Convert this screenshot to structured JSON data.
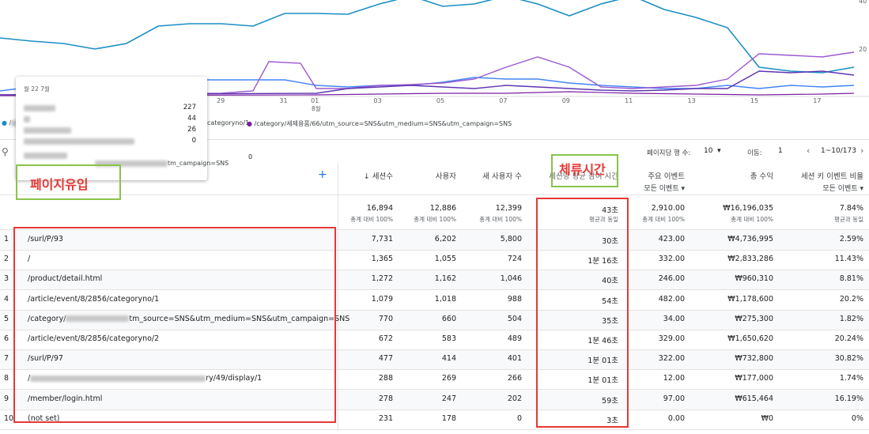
{
  "chart": {
    "axis_right": [
      "40",
      "20"
    ],
    "x_labels": [
      "29",
      "31",
      "01",
      "03",
      "05",
      "07",
      "09",
      "11",
      "13",
      "15",
      "17"
    ],
    "month_label": "8월",
    "tooltip": {
      "title": "월 22 7월",
      "values": [
        "227",
        "44",
        "26",
        "0"
      ]
    },
    "zero_label": "0",
    "legend": [
      "categoryno/1",
      "/category/세제용품/66/utm_source=SNS&utm_medium=SNS&utm_campaign=SNS"
    ],
    "legend_fragment": "tm_campaign=SNS"
  },
  "toolbar": {
    "rows_label": "페이지당 행 수:",
    "rows_value": "10",
    "goto_label": "이동:",
    "goto_value": "1",
    "range": "1~10/173"
  },
  "table": {
    "headers": [
      {
        "label": "↓ 세션수"
      },
      {
        "label": "사용자"
      },
      {
        "label": "새 사용자 수"
      },
      {
        "label": "세션당 평균 참여 시간"
      },
      {
        "label": "주요 이벤트",
        "sub": "모든 이벤트"
      },
      {
        "label": "총 수익"
      },
      {
        "label": "세션 키 이벤트 비율",
        "sub": "모든 이벤트"
      }
    ],
    "totals": [
      {
        "value": "16,894",
        "note": "총계 대비 100%"
      },
      {
        "value": "12,886",
        "note": "총계 대비 100%"
      },
      {
        "value": "12,399",
        "note": "총계 대비 100%"
      },
      {
        "value": "43초",
        "note": "평균과 동일"
      },
      {
        "value": "2,910.00",
        "note": "총계 대비 100%"
      },
      {
        "value": "₩16,196,035",
        "note": "총계 대비 100%"
      },
      {
        "value": "7.84%",
        "note": "평균과 동일"
      }
    ],
    "rows": [
      {
        "index": "1",
        "page": [
          "/surl/P/93"
        ],
        "cells": [
          "7,731",
          "6,202",
          "5,800",
          "30초",
          "423.00",
          "₩4,736,995",
          "2.59%"
        ]
      },
      {
        "index": "2",
        "page": [
          "/"
        ],
        "cells": [
          "1,365",
          "1,055",
          "724",
          "1분 16초",
          "332.00",
          "₩2,833,286",
          "11.43%"
        ]
      },
      {
        "index": "3",
        "page": [
          "/product/detail.html"
        ],
        "cells": [
          "1,272",
          "1,162",
          "1,046",
          "40초",
          "246.00",
          "₩960,310",
          "8.81%"
        ]
      },
      {
        "index": "4",
        "page": [
          "/article/event/8/2856/categoryno/1"
        ],
        "cells": [
          "1,079",
          "1,018",
          "988",
          "54초",
          "482.00",
          "₩1,178,600",
          "20.2%"
        ]
      },
      {
        "index": "5",
        "page": [
          "/category/",
          "tm_source=SNS&utm_medium=SNS&utm_campaign=SNS"
        ],
        "cells": [
          "770",
          "660",
          "504",
          "35초",
          "34.00",
          "₩275,300",
          "1.82%"
        ]
      },
      {
        "index": "6",
        "page": [
          "/article/event/8/2856/categoryno/2"
        ],
        "cells": [
          "672",
          "583",
          "489",
          "1분 46초",
          "329.00",
          "₩1,650,620",
          "20.24%"
        ]
      },
      {
        "index": "7",
        "page": [
          "/surl/P/97"
        ],
        "cells": [
          "477",
          "414",
          "401",
          "1분 01초",
          "322.00",
          "₩732,800",
          "30.82%"
        ]
      },
      {
        "index": "8",
        "page": [
          "/",
          "ry/49/display/1"
        ],
        "cells": [
          "288",
          "269",
          "266",
          "1분 01초",
          "12.00",
          "₩177,000",
          "1.74%"
        ]
      },
      {
        "index": "9",
        "page": [
          "/member/login.html"
        ],
        "cells": [
          "278",
          "247",
          "202",
          "59초",
          "97.00",
          "₩615,464",
          "16.19%"
        ]
      },
      {
        "index": "10",
        "page": [
          "(not set)"
        ],
        "cells": [
          "231",
          "178",
          "0",
          "3초",
          "0.00",
          "₩0",
          "0%"
        ]
      }
    ]
  },
  "annotations": {
    "page_inflow": "페이지유입",
    "dwell_time": "체류시간"
  }
}
